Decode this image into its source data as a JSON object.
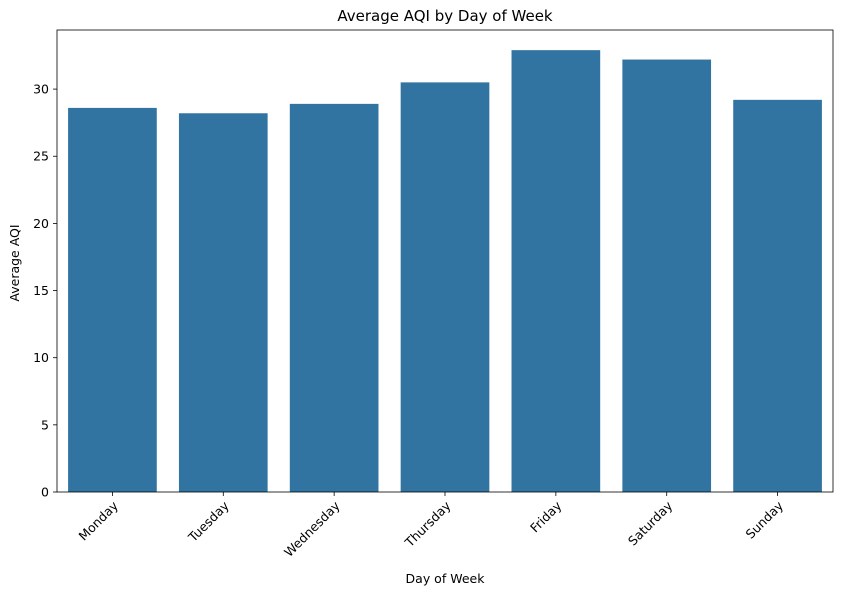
{
  "chart_data": {
    "type": "bar",
    "title": "Average AQI by Day of Week",
    "xlabel": "Day of Week",
    "ylabel": "Average AQI",
    "categories": [
      "Monday",
      "Tuesday",
      "Wednesday",
      "Thursday",
      "Friday",
      "Saturday",
      "Sunday"
    ],
    "values": [
      28.6,
      28.2,
      28.9,
      30.5,
      32.9,
      32.2,
      29.2
    ],
    "ylim": [
      0,
      34.4
    ],
    "yticks": [
      0,
      5,
      10,
      15,
      20,
      25,
      30
    ],
    "ytick_labels": [
      "0",
      "5",
      "10",
      "15",
      "20",
      "25",
      "30"
    ],
    "bar_color": "#3274a1",
    "grid": false,
    "xtick_rotation_deg": 45
  }
}
